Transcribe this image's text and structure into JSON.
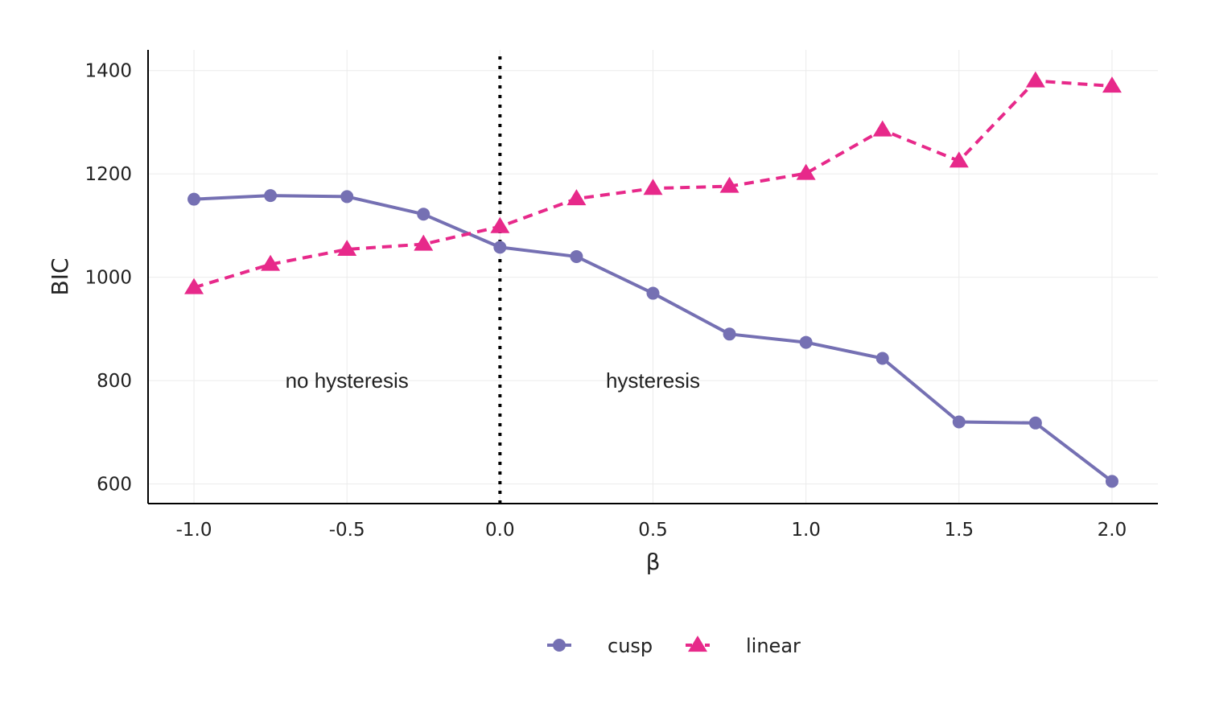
{
  "chart_data": {
    "type": "line",
    "title": "",
    "xlabel": "β",
    "ylabel": "BIC",
    "xlim": [
      -1.15,
      2.15
    ],
    "ylim": [
      562,
      1440
    ],
    "x_ticks": [
      -1.0,
      -0.5,
      0.0,
      0.5,
      1.0,
      1.5,
      2.0
    ],
    "x_tick_labels": [
      "-1.0",
      "-0.5",
      "0.0",
      "0.5",
      "1.0",
      "1.5",
      "2.0"
    ],
    "y_ticks": [
      600,
      800,
      1000,
      1200,
      1400
    ],
    "y_tick_labels": [
      "600",
      "800",
      "1000",
      "1200",
      "1400"
    ],
    "grid": true,
    "legend_position": "bottom",
    "x": [
      -1.0,
      -0.75,
      -0.5,
      -0.25,
      0.0,
      0.25,
      0.5,
      0.75,
      1.0,
      1.25,
      1.5,
      1.75,
      2.0
    ],
    "series": [
      {
        "name": "cusp",
        "color": "#7570b3",
        "marker": "circle",
        "line_style": "solid",
        "values": [
          1151,
          1158,
          1156,
          1122,
          1058,
          1040,
          969,
          890,
          874,
          843,
          720,
          718,
          605
        ]
      },
      {
        "name": "linear",
        "color": "#e7298a",
        "marker": "triangle",
        "line_style": "dashed",
        "values": [
          980,
          1025,
          1054,
          1064,
          1098,
          1152,
          1172,
          1176,
          1201,
          1285,
          1225,
          1380,
          1370
        ]
      }
    ],
    "reference_line": {
      "x": 0.0,
      "style": "dotted",
      "color": "#000000"
    },
    "annotations": [
      {
        "text": "no hysteresis",
        "x": -0.5,
        "y": 800
      },
      {
        "text": "hysteresis",
        "x": 0.5,
        "y": 800
      }
    ]
  }
}
